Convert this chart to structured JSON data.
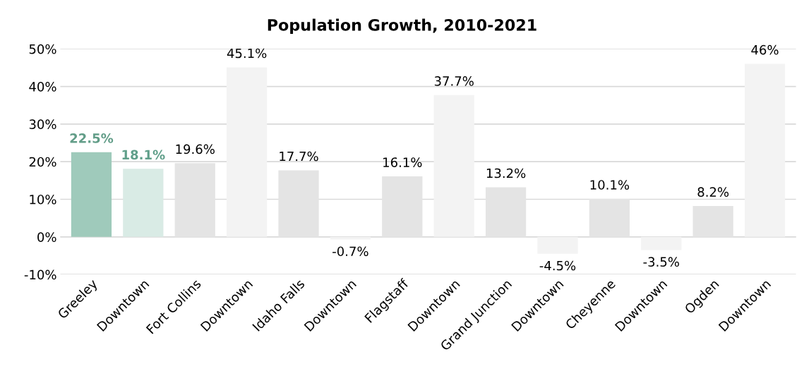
{
  "chart_data": {
    "type": "bar",
    "title": "Population Growth, 2010-2021",
    "categories": [
      "Greeley",
      "Downtown",
      "Fort Collins",
      "Downtown",
      "Idaho Falls",
      "Downtown",
      "Flagstaff",
      "Downtown",
      "Grand Junction",
      "Downtown",
      "Cheyenne",
      "Downtown",
      "Ogden",
      "Downtown"
    ],
    "values": [
      22.5,
      18.1,
      19.6,
      45.1,
      17.7,
      -0.7,
      16.1,
      37.7,
      13.2,
      -4.5,
      10.1,
      -3.5,
      8.2,
      46
    ],
    "colors": [
      "#9fcabb",
      "#d9ebe5",
      "#e4e4e4",
      "#f3f3f3",
      "#e4e4e4",
      "#f3f3f3",
      "#e4e4e4",
      "#f3f3f3",
      "#e4e4e4",
      "#f3f3f3",
      "#e4e4e4",
      "#f3f3f3",
      "#e4e4e4",
      "#f3f3f3"
    ],
    "value_labels": [
      "22.5%",
      "18.1%",
      "19.6%",
      "45.1%",
      "17.7%",
      "-0.7%",
      "16.1%",
      "37.7%",
      "13.2%",
      "-4.5%",
      "10.1%",
      "-3.5%",
      "8.2%",
      "46%"
    ],
    "ylim": [
      -10,
      50
    ],
    "yticks": [
      {
        "value": -10,
        "label": "-10%"
      },
      {
        "value": 0,
        "label": "0%"
      },
      {
        "value": 10,
        "label": "10%"
      },
      {
        "value": 20,
        "label": "20%"
      },
      {
        "value": 30,
        "label": "30%"
      },
      {
        "value": 40,
        "label": "40%"
      },
      {
        "value": 50,
        "label": "50%"
      }
    ],
    "grid": "y"
  }
}
